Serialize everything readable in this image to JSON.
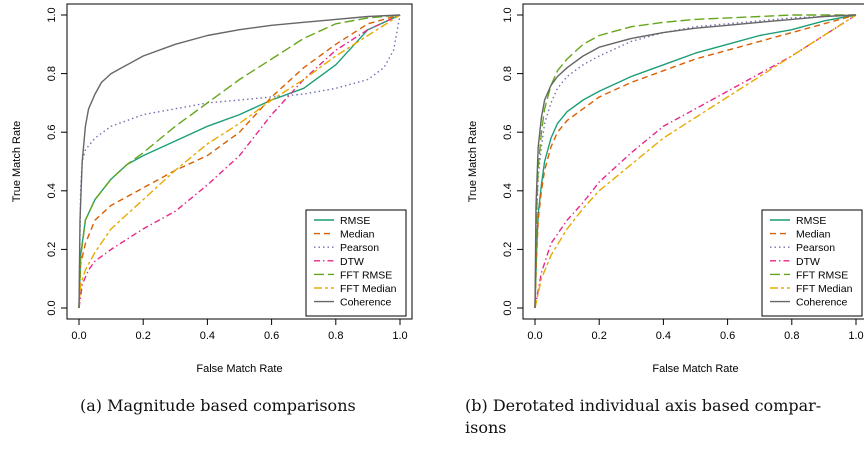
{
  "chart_data": [
    {
      "type": "line",
      "xlabel": "False Match Rate",
      "ylabel": "True Match Rate",
      "xlim": [
        0,
        1
      ],
      "ylim": [
        0,
        1
      ],
      "xticks": [
        "0.0",
        "0.2",
        "0.4",
        "0.6",
        "0.8",
        "1.0"
      ],
      "yticks": [
        "0.0",
        "0.2",
        "0.4",
        "0.6",
        "0.8",
        "1.0"
      ],
      "legend_position": "bottom-right",
      "grid": false,
      "series": [
        {
          "name": "RMSE",
          "color": "#1b9e77",
          "dash": "solid",
          "x": [
            0,
            0.005,
            0.02,
            0.05,
            0.1,
            0.15,
            0.2,
            0.3,
            0.4,
            0.5,
            0.6,
            0.7,
            0.8,
            0.9,
            1.0
          ],
          "y": [
            0,
            0.18,
            0.3,
            0.37,
            0.44,
            0.49,
            0.52,
            0.57,
            0.62,
            0.66,
            0.71,
            0.75,
            0.83,
            0.95,
            1.0
          ]
        },
        {
          "name": "Median",
          "color": "#d95f02",
          "dash": "dashed",
          "x": [
            0,
            0.005,
            0.02,
            0.05,
            0.1,
            0.2,
            0.3,
            0.4,
            0.5,
            0.6,
            0.7,
            0.8,
            0.9,
            1.0
          ],
          "y": [
            0,
            0.15,
            0.22,
            0.3,
            0.35,
            0.41,
            0.47,
            0.52,
            0.6,
            0.72,
            0.82,
            0.9,
            0.97,
            1.0
          ]
        },
        {
          "name": "Pearson",
          "color": "#7570b3",
          "dash": "dotted",
          "x": [
            0,
            0.005,
            0.01,
            0.02,
            0.05,
            0.1,
            0.15,
            0.2,
            0.3,
            0.4,
            0.5,
            0.6,
            0.7,
            0.8,
            0.9,
            0.95,
            0.98,
            1.0
          ],
          "y": [
            0,
            0.4,
            0.5,
            0.54,
            0.58,
            0.62,
            0.64,
            0.66,
            0.68,
            0.7,
            0.71,
            0.72,
            0.73,
            0.75,
            0.78,
            0.82,
            0.88,
            1.0
          ]
        },
        {
          "name": "DTW",
          "color": "#e7298a",
          "dash": "dashdot",
          "x": [
            0,
            0.01,
            0.03,
            0.05,
            0.1,
            0.2,
            0.3,
            0.4,
            0.5,
            0.6,
            0.7,
            0.8,
            0.9,
            1.0
          ],
          "y": [
            0,
            0.08,
            0.13,
            0.16,
            0.2,
            0.27,
            0.33,
            0.42,
            0.52,
            0.66,
            0.78,
            0.88,
            0.95,
            1.0
          ]
        },
        {
          "name": "FFT RMSE",
          "color": "#66a61e",
          "dash": "longdash",
          "x": [
            0,
            0.005,
            0.02,
            0.05,
            0.1,
            0.15,
            0.2,
            0.3,
            0.4,
            0.5,
            0.6,
            0.7,
            0.8,
            0.9,
            1.0
          ],
          "y": [
            0,
            0.17,
            0.3,
            0.37,
            0.44,
            0.49,
            0.53,
            0.62,
            0.7,
            0.78,
            0.85,
            0.92,
            0.97,
            0.99,
            1.0
          ]
        },
        {
          "name": "FFT Median",
          "color": "#e6ab02",
          "dash": "twodash",
          "x": [
            0,
            0.005,
            0.02,
            0.05,
            0.1,
            0.2,
            0.3,
            0.4,
            0.5,
            0.6,
            0.7,
            0.8,
            0.9,
            1.0
          ],
          "y": [
            0,
            0.08,
            0.13,
            0.19,
            0.27,
            0.37,
            0.47,
            0.56,
            0.63,
            0.71,
            0.78,
            0.86,
            0.93,
            1.0
          ]
        },
        {
          "name": "Coherence",
          "color": "#666666",
          "dash": "solid",
          "x": [
            0,
            0.003,
            0.01,
            0.02,
            0.03,
            0.05,
            0.07,
            0.1,
            0.15,
            0.2,
            0.3,
            0.4,
            0.5,
            0.6,
            0.7,
            0.8,
            0.9,
            1.0
          ],
          "y": [
            0,
            0.3,
            0.5,
            0.62,
            0.68,
            0.73,
            0.77,
            0.8,
            0.83,
            0.86,
            0.9,
            0.93,
            0.95,
            0.965,
            0.975,
            0.985,
            0.995,
            1.0
          ]
        }
      ]
    },
    {
      "type": "line",
      "xlabel": "False Match Rate",
      "ylabel": "True Match Rate",
      "xlim": [
        0,
        1
      ],
      "ylim": [
        0,
        1
      ],
      "xticks": [
        "0.0",
        "0.2",
        "0.4",
        "0.6",
        "0.8",
        "1.0"
      ],
      "yticks": [
        "0.0",
        "0.2",
        "0.4",
        "0.6",
        "0.8",
        "1.0"
      ],
      "legend_position": "bottom-right",
      "grid": false,
      "series": [
        {
          "name": "RMSE",
          "color": "#1b9e77",
          "dash": "solid",
          "x": [
            0,
            0.005,
            0.01,
            0.02,
            0.03,
            0.05,
            0.07,
            0.1,
            0.15,
            0.2,
            0.3,
            0.4,
            0.5,
            0.6,
            0.7,
            0.8,
            0.9,
            1.0
          ],
          "y": [
            0,
            0.2,
            0.32,
            0.42,
            0.5,
            0.58,
            0.63,
            0.67,
            0.71,
            0.74,
            0.79,
            0.83,
            0.87,
            0.9,
            0.93,
            0.95,
            0.98,
            1.0
          ]
        },
        {
          "name": "Median",
          "color": "#d95f02",
          "dash": "dashed",
          "x": [
            0,
            0.005,
            0.01,
            0.02,
            0.03,
            0.05,
            0.07,
            0.1,
            0.15,
            0.2,
            0.3,
            0.4,
            0.5,
            0.6,
            0.7,
            0.8,
            0.9,
            1.0
          ],
          "y": [
            0,
            0.18,
            0.3,
            0.4,
            0.47,
            0.55,
            0.6,
            0.64,
            0.68,
            0.72,
            0.77,
            0.81,
            0.85,
            0.88,
            0.91,
            0.94,
            0.97,
            1.0
          ]
        },
        {
          "name": "Pearson",
          "color": "#7570b3",
          "dash": "dotted",
          "x": [
            0,
            0.005,
            0.01,
            0.02,
            0.03,
            0.05,
            0.07,
            0.1,
            0.15,
            0.2,
            0.3,
            0.4,
            0.5,
            0.6,
            0.7,
            0.8,
            0.9,
            1.0
          ],
          "y": [
            0,
            0.3,
            0.45,
            0.55,
            0.63,
            0.7,
            0.75,
            0.79,
            0.83,
            0.86,
            0.91,
            0.94,
            0.96,
            0.97,
            0.98,
            0.99,
            0.995,
            1.0
          ]
        },
        {
          "name": "DTW",
          "color": "#e7298a",
          "dash": "dashdot",
          "x": [
            0,
            0.02,
            0.05,
            0.1,
            0.15,
            0.2,
            0.3,
            0.4,
            0.5,
            0.6,
            0.7,
            0.8,
            0.9,
            1.0
          ],
          "y": [
            0,
            0.12,
            0.22,
            0.3,
            0.36,
            0.43,
            0.53,
            0.62,
            0.68,
            0.74,
            0.8,
            0.86,
            0.93,
            1.0
          ]
        },
        {
          "name": "FFT RMSE",
          "color": "#66a61e",
          "dash": "longdash",
          "x": [
            0,
            0.005,
            0.01,
            0.02,
            0.03,
            0.05,
            0.07,
            0.1,
            0.15,
            0.2,
            0.3,
            0.4,
            0.5,
            0.6,
            0.7,
            0.8,
            0.9,
            1.0
          ],
          "y": [
            0,
            0.32,
            0.48,
            0.6,
            0.68,
            0.76,
            0.81,
            0.85,
            0.9,
            0.93,
            0.96,
            0.975,
            0.985,
            0.99,
            0.995,
            1.0,
            1.0,
            1.0
          ]
        },
        {
          "name": "FFT Median",
          "color": "#e6ab02",
          "dash": "twodash",
          "x": [
            0,
            0.02,
            0.05,
            0.1,
            0.15,
            0.2,
            0.3,
            0.4,
            0.5,
            0.6,
            0.7,
            0.8,
            0.9,
            1.0
          ],
          "y": [
            0,
            0.1,
            0.18,
            0.27,
            0.34,
            0.4,
            0.49,
            0.58,
            0.65,
            0.72,
            0.79,
            0.86,
            0.93,
            1.0
          ]
        },
        {
          "name": "Coherence",
          "color": "#666666",
          "dash": "solid",
          "x": [
            0,
            0.003,
            0.01,
            0.02,
            0.03,
            0.05,
            0.07,
            0.1,
            0.15,
            0.2,
            0.3,
            0.4,
            0.5,
            0.6,
            0.7,
            0.8,
            0.9,
            1.0
          ],
          "y": [
            0,
            0.35,
            0.55,
            0.65,
            0.71,
            0.76,
            0.79,
            0.82,
            0.86,
            0.89,
            0.92,
            0.94,
            0.955,
            0.965,
            0.975,
            0.985,
            0.995,
            1.0
          ]
        }
      ]
    }
  ],
  "captions": [
    {
      "label": "(a)",
      "lines": [
        "Magnitude based comparisons"
      ]
    },
    {
      "label": "(b)",
      "lines": [
        "Derotated individual axis based compar-",
        "isons"
      ]
    }
  ]
}
